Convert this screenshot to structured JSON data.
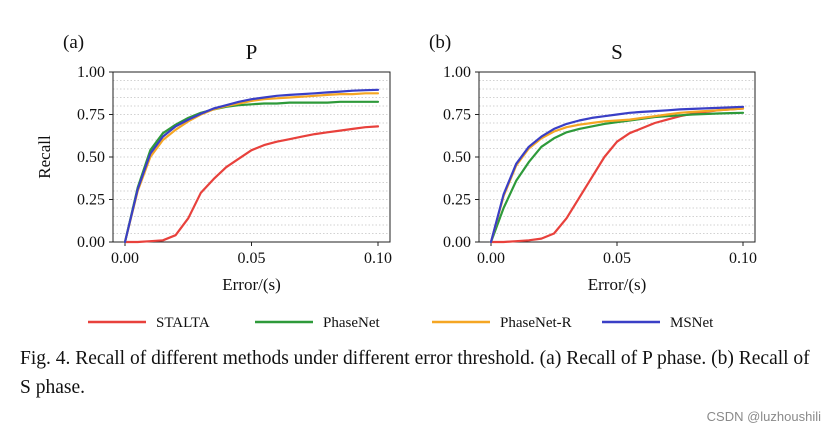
{
  "chart_data": [
    {
      "type": "line",
      "panel": "(a)",
      "title": "P",
      "xlabel": "Error/(s)",
      "ylabel": "Recall",
      "xlim": [
        0.0,
        0.1
      ],
      "ylim": [
        0.0,
        1.0
      ],
      "xticks": [
        "0.00",
        "0.05",
        "0.10"
      ],
      "yticks": [
        "0.00",
        "0.25",
        "0.50",
        "0.75",
        "1.00"
      ],
      "grid": true,
      "x": [
        0.0,
        0.005,
        0.01,
        0.015,
        0.02,
        0.025,
        0.03,
        0.035,
        0.04,
        0.045,
        0.05,
        0.055,
        0.06,
        0.065,
        0.07,
        0.075,
        0.08,
        0.085,
        0.09,
        0.095,
        0.1
      ],
      "series": [
        {
          "name": "STALTA",
          "color": "#e8413c",
          "values": [
            0.0,
            0.0,
            0.005,
            0.01,
            0.04,
            0.14,
            0.29,
            0.37,
            0.44,
            0.49,
            0.54,
            0.57,
            0.59,
            0.605,
            0.62,
            0.635,
            0.645,
            0.655,
            0.665,
            0.675,
            0.68
          ]
        },
        {
          "name": "PhaseNet",
          "color": "#2e9a3a",
          "values": [
            0.0,
            0.32,
            0.54,
            0.64,
            0.69,
            0.73,
            0.76,
            0.78,
            0.795,
            0.805,
            0.81,
            0.815,
            0.815,
            0.82,
            0.82,
            0.82,
            0.82,
            0.825,
            0.825,
            0.825,
            0.825
          ]
        },
        {
          "name": "PhaseNet-R",
          "color": "#f5a623",
          "values": [
            0.0,
            0.3,
            0.5,
            0.6,
            0.66,
            0.71,
            0.75,
            0.78,
            0.8,
            0.815,
            0.83,
            0.84,
            0.845,
            0.85,
            0.855,
            0.86,
            0.865,
            0.87,
            0.87,
            0.875,
            0.875
          ]
        },
        {
          "name": "MSNet",
          "color": "#3a3fc6",
          "values": [
            0.0,
            0.31,
            0.52,
            0.62,
            0.68,
            0.72,
            0.755,
            0.785,
            0.805,
            0.825,
            0.84,
            0.85,
            0.86,
            0.865,
            0.87,
            0.875,
            0.88,
            0.885,
            0.89,
            0.893,
            0.895
          ]
        }
      ]
    },
    {
      "type": "line",
      "panel": "(b)",
      "title": "S",
      "xlabel": "Error/(s)",
      "ylabel": "",
      "xlim": [
        0.0,
        0.1
      ],
      "ylim": [
        0.0,
        1.0
      ],
      "xticks": [
        "0.00",
        "0.05",
        "0.10"
      ],
      "yticks": [
        "0.00",
        "0.25",
        "0.50",
        "0.75",
        "1.00"
      ],
      "grid": true,
      "x": [
        0.0,
        0.005,
        0.01,
        0.015,
        0.02,
        0.025,
        0.03,
        0.035,
        0.04,
        0.045,
        0.05,
        0.055,
        0.06,
        0.065,
        0.07,
        0.075,
        0.08,
        0.085,
        0.09,
        0.095,
        0.1
      ],
      "series": [
        {
          "name": "STALTA",
          "color": "#e8413c",
          "values": [
            0.0,
            0.0,
            0.005,
            0.01,
            0.02,
            0.05,
            0.14,
            0.26,
            0.38,
            0.5,
            0.59,
            0.64,
            0.67,
            0.7,
            0.72,
            0.74,
            0.755,
            0.765,
            0.775,
            0.78,
            0.785
          ]
        },
        {
          "name": "PhaseNet",
          "color": "#2e9a3a",
          "values": [
            0.0,
            0.2,
            0.36,
            0.47,
            0.56,
            0.61,
            0.645,
            0.665,
            0.68,
            0.695,
            0.705,
            0.715,
            0.725,
            0.735,
            0.74,
            0.745,
            0.75,
            0.753,
            0.756,
            0.758,
            0.76
          ]
        },
        {
          "name": "PhaseNet-R",
          "color": "#f5a623",
          "values": [
            0.0,
            0.27,
            0.45,
            0.55,
            0.61,
            0.65,
            0.675,
            0.69,
            0.7,
            0.71,
            0.715,
            0.72,
            0.73,
            0.74,
            0.75,
            0.76,
            0.765,
            0.77,
            0.775,
            0.78,
            0.785
          ]
        },
        {
          "name": "MSNet",
          "color": "#3a3fc6",
          "values": [
            0.0,
            0.28,
            0.46,
            0.56,
            0.62,
            0.665,
            0.695,
            0.715,
            0.73,
            0.74,
            0.75,
            0.76,
            0.765,
            0.77,
            0.775,
            0.78,
            0.783,
            0.786,
            0.789,
            0.792,
            0.795
          ]
        }
      ]
    }
  ],
  "legend": {
    "placement": "bottom-center",
    "items": [
      {
        "label": "STALTA",
        "color": "#e8413c"
      },
      {
        "label": "PhaseNet",
        "color": "#2e9a3a"
      },
      {
        "label": "PhaseNet-R",
        "color": "#f5a623"
      },
      {
        "label": "MSNet",
        "color": "#3a3fc6"
      }
    ]
  },
  "caption": "Fig. 4.  Recall of different methods under different error threshold. (a) Recall of P phase. (b) Recall of S phase.",
  "watermark": "CSDN @luzhoushili"
}
